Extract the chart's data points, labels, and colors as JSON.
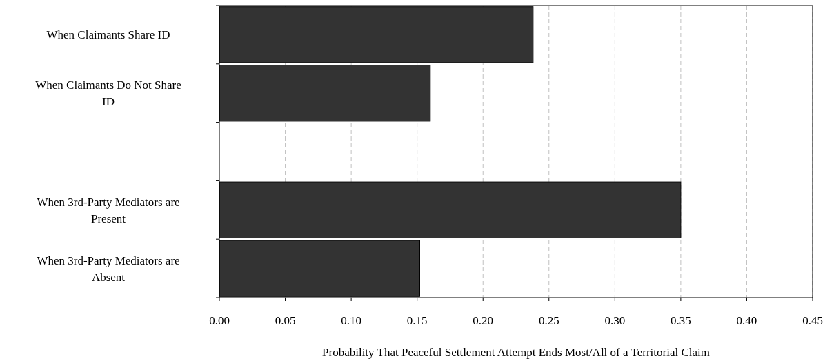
{
  "chart_data": {
    "type": "bar",
    "orientation": "horizontal",
    "xlabel": "Probability That Peaceful Settlement Attempt Ends Most/All of a Territorial Claim",
    "categories": [
      "When Claimants Share ID",
      "When Claimants Do Not Share ID",
      null,
      "When 3rd-Party Mediators are Present",
      "When 3rd-Party Mediators are Absent"
    ],
    "values": [
      0.238,
      0.16,
      null,
      0.35,
      0.152
    ],
    "color": "#333333",
    "xlim": [
      0,
      0.45
    ],
    "xticks": [
      {
        "value": 0,
        "label": "0.00"
      },
      {
        "value": 0.05,
        "label": "0.05"
      },
      {
        "value": 0.1,
        "label": "0.10"
      },
      {
        "value": 0.15,
        "label": "0.15"
      },
      {
        "value": 0.2,
        "label": "0.20"
      },
      {
        "value": 0.25,
        "label": "0.25"
      },
      {
        "value": 0.3,
        "label": "0.30"
      },
      {
        "value": 0.35,
        "label": "0.35"
      },
      {
        "value": 0.4,
        "label": "0.40"
      },
      {
        "value": 0.45,
        "label": "0.45"
      }
    ],
    "grid": "x"
  }
}
